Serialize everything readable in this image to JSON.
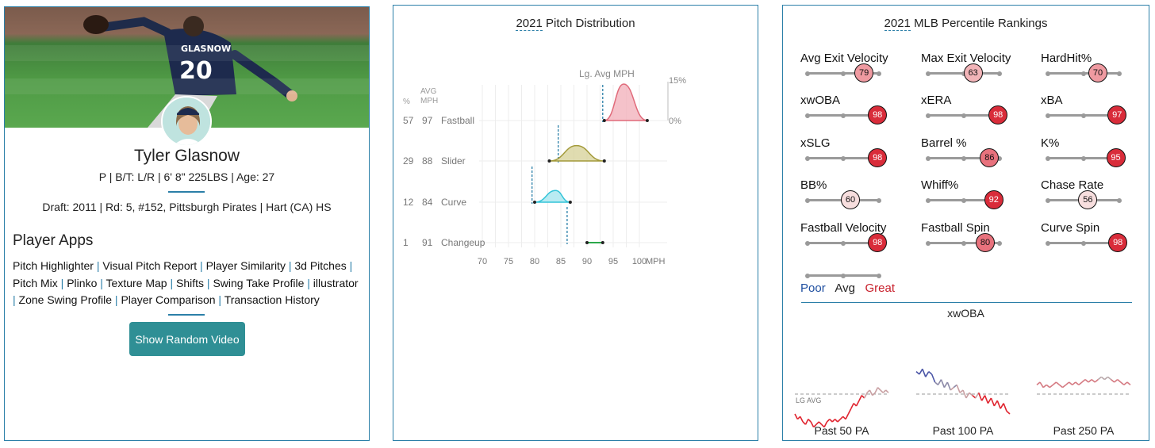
{
  "player": {
    "name": "Tyler Glasnow",
    "info": "P | B/T: L/R | 6' 8\" 225LBS | Age: 27",
    "draft": "Draft: 2011 | Rd: 5, #152, Pittsburgh Pirates | Hart (CA) HS",
    "jersey_name": "GLASNOW",
    "jersey_number": "20"
  },
  "apps": {
    "title": "Player Apps",
    "links": [
      "Pitch Highlighter",
      "Visual Pitch Report",
      "Player Similarity",
      "3d Pitches",
      "Pitch Mix",
      "Plinko",
      "Texture Map",
      "Shifts",
      "Swing Take Profile",
      "illustrator",
      "Zone Swing Profile",
      "Player Comparison",
      "Transaction History"
    ],
    "button": "Show Random Video"
  },
  "distribution": {
    "title_year": "2021",
    "title_rest": "Pitch Distribution",
    "col_pct": "%",
    "col_avg": "AVG",
    "col_mph": "MPH",
    "lg_avg_label": "Lg. Avg MPH",
    "scale_top": "15%",
    "scale_bottom": "0%",
    "axis_unit": "MPH",
    "x_ticks": [
      70,
      75,
      80,
      85,
      90,
      95,
      100
    ],
    "pitches": [
      {
        "pct": "57",
        "avg": "97",
        "name": "Fastball",
        "color": "#e06a7a",
        "fill": "#f2b3bd",
        "min": 93.3,
        "max": 101.5,
        "peak": 97,
        "height": 1.0,
        "lg_avg": 93.0
      },
      {
        "pct": "29",
        "avg": "88",
        "name": "Slider",
        "color": "#a39a3a",
        "fill": "#d8d39c",
        "min": 82.8,
        "max": 93.3,
        "peak": 88,
        "height": 0.42,
        "lg_avg": 84.5
      },
      {
        "pct": "12",
        "avg": "84",
        "name": "Curve",
        "color": "#32c4d8",
        "fill": "#a6e6ef",
        "min": 80.0,
        "max": 86.8,
        "peak": 84,
        "height": 0.32,
        "lg_avg": 79.5
      },
      {
        "pct": "1",
        "avg": "91",
        "name": "Changeup",
        "color": "#2ba84a",
        "fill": "#2ba84a",
        "min": 90.0,
        "max": 93.0,
        "peak": 91,
        "height": 0.0,
        "lg_avg": 86.2
      }
    ]
  },
  "rankings": {
    "title_year": "2021",
    "title_rest": "MLB Percentile Rankings",
    "metrics": [
      {
        "label": "Avg Exit Velocity",
        "value": 79
      },
      {
        "label": "Max Exit Velocity",
        "value": 63
      },
      {
        "label": "HardHit%",
        "value": 70
      },
      {
        "label": "xwOBA",
        "value": 98
      },
      {
        "label": "xERA",
        "value": 98
      },
      {
        "label": "xBA",
        "value": 97
      },
      {
        "label": "xSLG",
        "value": 98
      },
      {
        "label": "Barrel %",
        "value": 86
      },
      {
        "label": "K%",
        "value": 95
      },
      {
        "label": "BB%",
        "value": 60
      },
      {
        "label": "Whiff%",
        "value": 92
      },
      {
        "label": "Chase Rate",
        "value": 56
      },
      {
        "label": "Fastball Velocity",
        "value": 98
      },
      {
        "label": "Fastball Spin",
        "value": 80
      },
      {
        "label": "Curve Spin",
        "value": 98
      }
    ],
    "legend": {
      "poor": "Poor",
      "avg": "Avg",
      "great": "Great",
      "poor_color": "#1f4fa0",
      "great_color": "#c8202c"
    }
  },
  "xwoba": {
    "title": "xwOBA",
    "lg_avg_label": "LG AVG",
    "charts": [
      {
        "label": "Past 50 PA",
        "values": [
          0.24,
          0.22,
          0.23,
          0.21,
          0.2,
          0.22,
          0.21,
          0.19,
          0.2,
          0.21,
          0.2,
          0.19,
          0.21,
          0.22,
          0.21,
          0.22,
          0.21,
          0.22,
          0.23,
          0.22,
          0.24,
          0.26,
          0.28,
          0.27,
          0.29,
          0.31,
          0.3,
          0.32,
          0.33,
          0.31,
          0.32,
          0.34,
          0.33,
          0.32,
          0.33,
          0.32
        ]
      },
      {
        "label": "Past 100 PA",
        "values": [
          0.4,
          0.39,
          0.41,
          0.38,
          0.4,
          0.39,
          0.36,
          0.35,
          0.37,
          0.34,
          0.36,
          0.33,
          0.34,
          0.35,
          0.32,
          0.33,
          0.3,
          0.32,
          0.31,
          0.3,
          0.32,
          0.29,
          0.31,
          0.28,
          0.3,
          0.27,
          0.29,
          0.26,
          0.28,
          0.25,
          0.24
        ]
      },
      {
        "label": "Past 250 PA",
        "values": [
          0.35,
          0.36,
          0.34,
          0.35,
          0.34,
          0.35,
          0.36,
          0.35,
          0.34,
          0.35,
          0.36,
          0.35,
          0.36,
          0.35,
          0.36,
          0.37,
          0.36,
          0.37,
          0.36,
          0.37,
          0.38,
          0.37,
          0.38,
          0.37,
          0.36,
          0.37,
          0.36,
          0.35,
          0.36,
          0.35
        ]
      }
    ]
  }
}
